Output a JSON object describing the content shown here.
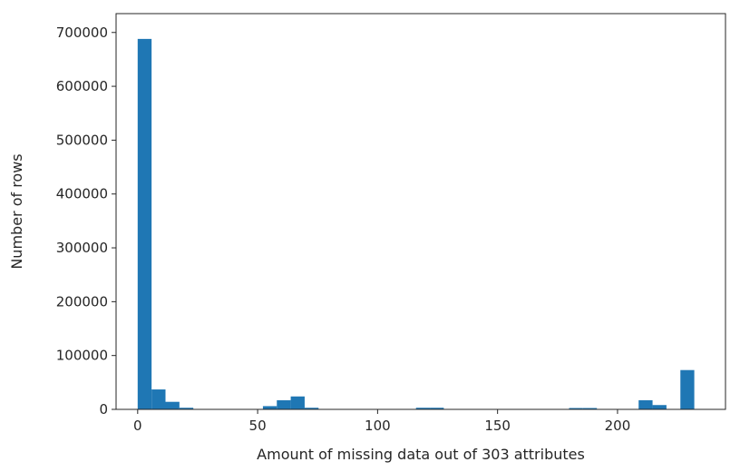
{
  "chart_data": {
    "type": "bar",
    "title": "",
    "xlabel": "Amount of missing data out of 303 attributes",
    "ylabel": "Number of rows",
    "xlim": [
      -9,
      245
    ],
    "ylim": [
      0,
      735000
    ],
    "xticks": [
      0,
      50,
      100,
      150,
      200
    ],
    "yticks": [
      0,
      100000,
      200000,
      300000,
      400000,
      500000,
      600000,
      700000
    ],
    "xtick_labels": [
      "0",
      "50",
      "100",
      "150",
      "200"
    ],
    "ytick_labels": [
      "0",
      "100000",
      "200000",
      "300000",
      "400000",
      "500000",
      "600000",
      "700000"
    ],
    "bin_width": 5.8,
    "bins": [
      {
        "x": 0.0,
        "count": 688000
      },
      {
        "x": 5.8,
        "count": 37000
      },
      {
        "x": 11.6,
        "count": 14000
      },
      {
        "x": 17.4,
        "count": 3000
      },
      {
        "x": 52.2,
        "count": 6000
      },
      {
        "x": 58.0,
        "count": 17000
      },
      {
        "x": 63.8,
        "count": 24000
      },
      {
        "x": 69.6,
        "count": 3000
      },
      {
        "x": 116.0,
        "count": 3000
      },
      {
        "x": 121.8,
        "count": 3000
      },
      {
        "x": 179.8,
        "count": 2500
      },
      {
        "x": 185.6,
        "count": 2500
      },
      {
        "x": 208.8,
        "count": 17000
      },
      {
        "x": 214.6,
        "count": 8000
      },
      {
        "x": 226.2,
        "count": 73000
      }
    ],
    "bar_color": "#1f77b4",
    "grid": false,
    "legend": "none"
  }
}
